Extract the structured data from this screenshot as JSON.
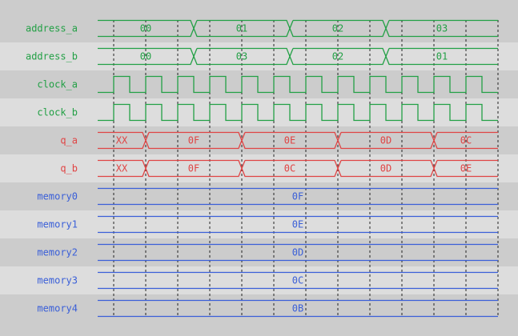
{
  "colors": {
    "green": "#22a045",
    "red": "#e04444",
    "blue": "#3a5fd8",
    "row_dark": "#cccccc",
    "row_light": "#dddddd",
    "grid": "#222222"
  },
  "signals": [
    {
      "name": "address_a",
      "type": "bus",
      "color": "green",
      "segments": [
        {
          "value": "00",
          "end_cycle": 3
        },
        {
          "value": "01",
          "end_cycle": 6
        },
        {
          "value": "02",
          "end_cycle": 9
        },
        {
          "value": "03",
          "end_cycle": 12
        }
      ]
    },
    {
      "name": "address_b",
      "type": "bus",
      "color": "green",
      "segments": [
        {
          "value": "00",
          "end_cycle": 3
        },
        {
          "value": "03",
          "end_cycle": 6
        },
        {
          "value": "02",
          "end_cycle": 9
        },
        {
          "value": "01",
          "end_cycle": 12
        }
      ]
    },
    {
      "name": "clock_a",
      "type": "clock",
      "color": "green"
    },
    {
      "name": "clock_b",
      "type": "clock",
      "color": "green"
    },
    {
      "name": "q_a",
      "type": "bus",
      "color": "red",
      "segments": [
        {
          "value": "XX",
          "end_cycle": 1.5
        },
        {
          "value": "0F",
          "end_cycle": 4.5
        },
        {
          "value": "0E",
          "end_cycle": 7.5
        },
        {
          "value": "0D",
          "end_cycle": 10.5
        },
        {
          "value": "0C",
          "end_cycle": 12.5
        }
      ]
    },
    {
      "name": "q_b",
      "type": "bus",
      "color": "red",
      "segments": [
        {
          "value": "XX",
          "end_cycle": 1.5
        },
        {
          "value": "0F",
          "end_cycle": 4.5
        },
        {
          "value": "0C",
          "end_cycle": 7.5
        },
        {
          "value": "0D",
          "end_cycle": 10.5
        },
        {
          "value": "0E",
          "end_cycle": 12.5
        }
      ]
    },
    {
      "name": "memory0",
      "type": "const",
      "color": "blue",
      "value": "0F"
    },
    {
      "name": "memory1",
      "type": "const",
      "color": "blue",
      "value": "0E"
    },
    {
      "name": "memory2",
      "type": "const",
      "color": "blue",
      "value": "0D"
    },
    {
      "name": "memory3",
      "type": "const",
      "color": "blue",
      "value": "0C"
    },
    {
      "name": "memory4",
      "type": "const",
      "color": "blue",
      "value": "0B"
    }
  ]
}
